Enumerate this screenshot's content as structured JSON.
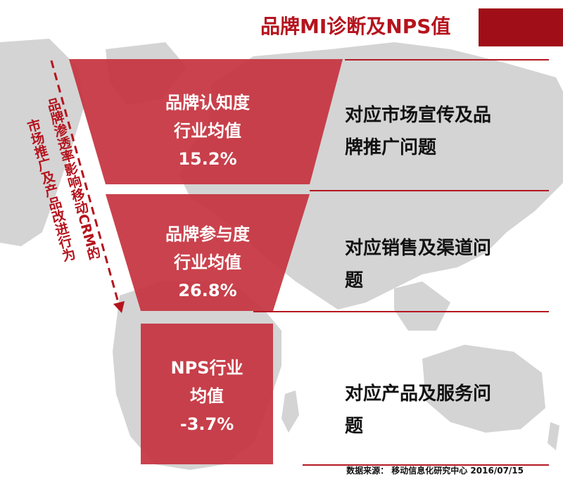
{
  "title": "品牌MI诊断及NPS值",
  "colors": {
    "brand": "#b5131d",
    "title_bar": "#a00e18",
    "funnel": "#c6323e",
    "map": "#d4d4d4"
  },
  "stages": [
    {
      "name": "品牌认知度",
      "sub": "行业均值",
      "value": "15.2%",
      "description_1": "对应市场宣传及品",
      "description_2": "牌推广问题"
    },
    {
      "name": "品牌参与度",
      "sub": "行业均值",
      "value": "26.8%",
      "description_1": "对应销售及渠道问",
      "description_2": "题"
    },
    {
      "name": "NPS行业",
      "sub": "均值",
      "value": "-3.7%",
      "description_1": "对应产品及服务问",
      "description_2": "题"
    }
  ],
  "side_note": {
    "line1": "品牌渗透率影响移动CRM的",
    "line2": "市场推广及产品改进行为"
  },
  "footer": "数据来源： 移动信息化研究中心 2016/07/15"
}
